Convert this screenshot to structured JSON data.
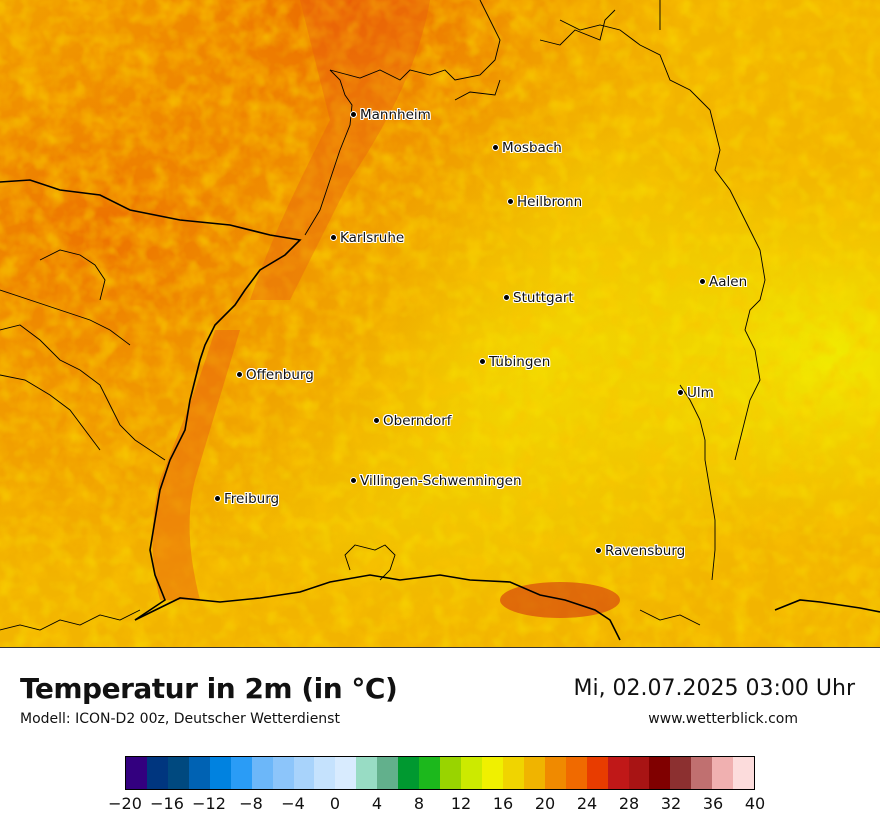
{
  "title": "Temperatur in 2m (in °C)",
  "subtitle": "Modell: ICON-D2 00z, Deutscher Wetterdienst",
  "datetime": "Mi, 02.07.2025 03:00 Uhr",
  "website": "www.wetterblick.com",
  "cities": [
    {
      "name": "Mannheim",
      "label": "Mannheim"
    },
    {
      "name": "Mosbach",
      "label": "Mosbach"
    },
    {
      "name": "Heilbronn",
      "label": "Heilbronn"
    },
    {
      "name": "Karlsruhe",
      "label": "Karlsruhe"
    },
    {
      "name": "Aalen",
      "label": "Aalen"
    },
    {
      "name": "Stuttgart",
      "label": "Stuttgart"
    },
    {
      "name": "Tuebingen",
      "label": "Tübingen"
    },
    {
      "name": "Offenburg",
      "label": "Offenburg"
    },
    {
      "name": "Ulm",
      "label": "Ulm"
    },
    {
      "name": "Oberndorf",
      "label": "Oberndorf"
    },
    {
      "name": "Villingen-Schwenningen",
      "label": "Villingen-Schwenningen"
    },
    {
      "name": "Freiburg",
      "label": "Freiburg"
    },
    {
      "name": "Ravensburg",
      "label": "Ravensburg"
    }
  ],
  "colorbar": {
    "colors": [
      "#33007f",
      "#00367f",
      "#00497f",
      "#0062b3",
      "#0082e0",
      "#2a9cf6",
      "#6cb7f9",
      "#8cc5fa",
      "#a8d3fb",
      "#c5e2fd",
      "#d8ebfe",
      "#98dcc4",
      "#62b08c",
      "#009930",
      "#1cb81c",
      "#99d400",
      "#ccea00",
      "#f0f000",
      "#f0d400",
      "#f0b400",
      "#f08a00",
      "#f06a00",
      "#e83c00",
      "#c01818",
      "#a81414",
      "#800000",
      "#8c3030",
      "#c07070",
      "#f0b0b0",
      "#fcdcdc"
    ],
    "tick_labels": [
      "−20",
      "−16",
      "−12",
      "−8",
      "−4",
      "0",
      "4",
      "8",
      "12",
      "16",
      "20",
      "24",
      "28",
      "32",
      "36",
      "40"
    ]
  }
}
